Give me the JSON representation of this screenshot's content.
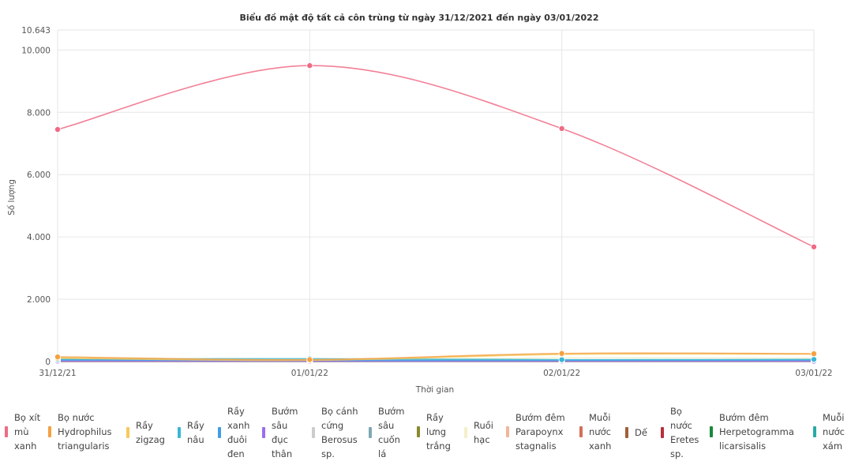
{
  "chart_data": {
    "type": "line",
    "title": "Biểu đồ mật độ tất cả côn trùng từ ngày 31/12/2021 đến ngày 03/01/2022",
    "xlabel": "Thời gian",
    "ylabel": "Số lượng",
    "categories": [
      "31/12/21",
      "01/01/22",
      "02/01/22",
      "03/01/22"
    ],
    "ylim": [
      0,
      10643
    ],
    "yticks": [
      "0",
      "2.000",
      "4.000",
      "6.000",
      "8.000",
      "10.000",
      "10.643"
    ],
    "ytick_values": [
      0,
      2000,
      4000,
      6000,
      8000,
      10000,
      10643
    ],
    "grid": true,
    "legend_position": "bottom",
    "series": [
      {
        "name": "Bọ xít mù xanh",
        "color": "#f06a85",
        "values": [
          7450,
          9500,
          7480,
          3680
        ]
      },
      {
        "name": "Bọ nước Hydrophilus triangularis",
        "color": "#f5a142",
        "values": [
          150,
          60,
          260,
          250
        ]
      },
      {
        "name": "Rầy zigzag",
        "color": "#f6c95a",
        "values": [
          110,
          40,
          230,
          240
        ]
      },
      {
        "name": "Rầy nâu",
        "color": "#3ab7d4",
        "values": [
          80,
          90,
          60,
          70
        ]
      },
      {
        "name": "Rầy xanh đuôi đen",
        "color": "#3f9de8",
        "values": [
          50,
          40,
          40,
          45
        ]
      },
      {
        "name": "Bướm sâu đục thân",
        "color": "#9b6cf0",
        "values": [
          15,
          10,
          12,
          10
        ]
      },
      {
        "name": "Bọ cánh cứng Berosus sp.",
        "color": "#cccccc",
        "values": [
          30,
          20,
          25,
          20
        ]
      },
      {
        "name": "Bướm sâu cuốn lá",
        "color": "#7fa8b5",
        "values": [
          20,
          15,
          20,
          18
        ]
      },
      {
        "name": "Rầy lưng trắng",
        "color": "#8b8a2e",
        "values": [
          10,
          8,
          10,
          8
        ]
      },
      {
        "name": "Ruồi hạc",
        "color": "#f4efc9",
        "values": [
          100,
          40,
          120,
          110
        ]
      },
      {
        "name": "Bướm đêm Parapoynx stagnalis",
        "color": "#f1b59a",
        "values": [
          25,
          15,
          30,
          28
        ]
      },
      {
        "name": "Muỗi nước xanh",
        "color": "#d36f57",
        "values": [
          12,
          10,
          14,
          12
        ]
      },
      {
        "name": "Dế",
        "color": "#a0603a",
        "values": [
          8,
          6,
          8,
          7
        ]
      },
      {
        "name": "Bọ nước Eretes sp.",
        "color": "#b5303a",
        "values": [
          6,
          5,
          6,
          5
        ]
      },
      {
        "name": "Bướm đêm Herpetogramma licarsisalis",
        "color": "#18883c",
        "values": [
          5,
          4,
          5,
          4
        ]
      },
      {
        "name": "Muỗi nước xám",
        "color": "#28aaa8",
        "values": [
          40,
          30,
          35,
          30
        ]
      }
    ]
  },
  "legend": {
    "items": [
      {
        "label": "Bọ xít\nmù\nxanh",
        "color": "#f06a85"
      },
      {
        "label": "Bọ nước\nHydrophilus\ntriangularis",
        "color": "#f5a142"
      },
      {
        "label": "Rầy\nzigzag",
        "color": "#f6c95a"
      },
      {
        "label": "Rầy\nnâu",
        "color": "#3ab7d4"
      },
      {
        "label": "Rầy\nxanh\nđuôi\nđen",
        "color": "#3f9de8"
      },
      {
        "label": "Bướm\nsâu\nđục\nthân",
        "color": "#9b6cf0"
      },
      {
        "label": "Bọ cánh\ncứng\nBerosus\nsp.",
        "color": "#cccccc"
      },
      {
        "label": "Bướm\nsâu\ncuốn\nlá",
        "color": "#7fa8b5"
      },
      {
        "label": "Rầy\nlưng\ntrắng",
        "color": "#8b8a2e"
      },
      {
        "label": "Ruồi\nhạc",
        "color": "#f4efc9"
      },
      {
        "label": "Bướm đêm\nParapoynx\nstagnalis",
        "color": "#f1b59a"
      },
      {
        "label": "Muỗi\nnước\nxanh",
        "color": "#d36f57"
      },
      {
        "label": "Dế",
        "color": "#a0603a"
      },
      {
        "label": "Bọ\nnước\nEretes\nsp.",
        "color": "#b5303a"
      },
      {
        "label": "Bướm đêm\nHerpetogramma\nlicarsisalis",
        "color": "#18883c"
      },
      {
        "label": "Muỗi\nnước\nxám",
        "color": "#28aaa8"
      }
    ]
  }
}
